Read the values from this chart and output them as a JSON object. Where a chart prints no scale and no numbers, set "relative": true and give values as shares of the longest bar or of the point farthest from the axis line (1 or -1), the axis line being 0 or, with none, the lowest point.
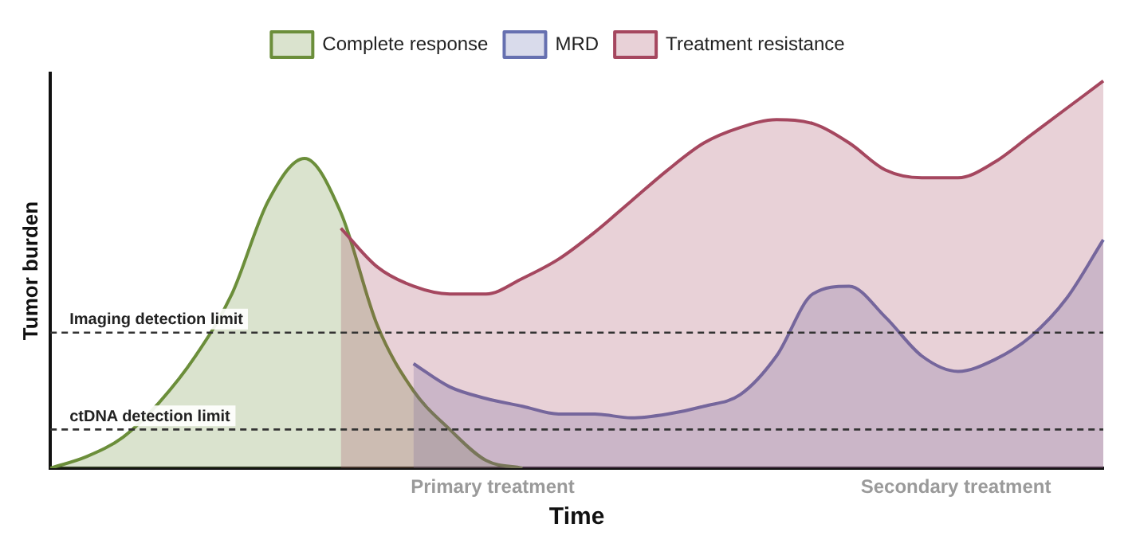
{
  "chart_data": {
    "type": "area",
    "relative": true,
    "xlabel": "Time",
    "ylabel": "Tumor burden",
    "legend": "top",
    "categories": [
      null,
      null,
      null,
      null,
      null,
      null,
      null,
      null,
      null,
      null,
      null,
      null,
      null,
      null,
      null,
      null,
      null,
      null,
      null,
      null,
      null,
      null,
      null,
      null,
      null,
      null,
      null,
      null,
      null,
      null
    ],
    "series": [
      {
        "name": "Complete response",
        "color": "#6b8e3a",
        "values": [
          0,
          0.03,
          0.08,
          0.17,
          0.29,
          0.45,
          0.69,
          0.8,
          0.66,
          0.37,
          0.2,
          0.1,
          0.02,
          0,
          null,
          null,
          null,
          null,
          null,
          null,
          null,
          null,
          null,
          null,
          null,
          null,
          null,
          null,
          null,
          null
        ]
      },
      {
        "name": "MRD",
        "color": "#6670b0",
        "values": [
          null,
          null,
          null,
          null,
          null,
          null,
          null,
          null,
          null,
          null,
          0.27,
          0.21,
          0.18,
          0.16,
          0.14,
          0.14,
          0.13,
          0.14,
          0.16,
          0.19,
          0.29,
          0.45,
          0.47,
          0.39,
          0.29,
          0.25,
          0.28,
          0.34,
          0.44,
          0.59
        ]
      },
      {
        "name": "Treatment resistance",
        "color": "#a5475f",
        "values": [
          null,
          null,
          null,
          null,
          null,
          null,
          null,
          null,
          0.62,
          0.52,
          0.47,
          0.45,
          0.45,
          0.49,
          0.54,
          0.61,
          0.69,
          0.77,
          0.84,
          0.88,
          0.9,
          0.89,
          0.84,
          0.77,
          0.75,
          0.75,
          0.79,
          0.86,
          0.93,
          1
        ]
      }
    ],
    "ref_lines": [
      {
        "axis": "y",
        "value": 0.35,
        "label": "Imaging detection limit",
        "line_style": "dashed"
      },
      {
        "axis": "y",
        "value": 0.1,
        "label": "ctDNA detection limit",
        "line_style": "dashed"
      }
    ],
    "annotations": [
      "Primary treatment",
      "Secondary treatment"
    ]
  }
}
